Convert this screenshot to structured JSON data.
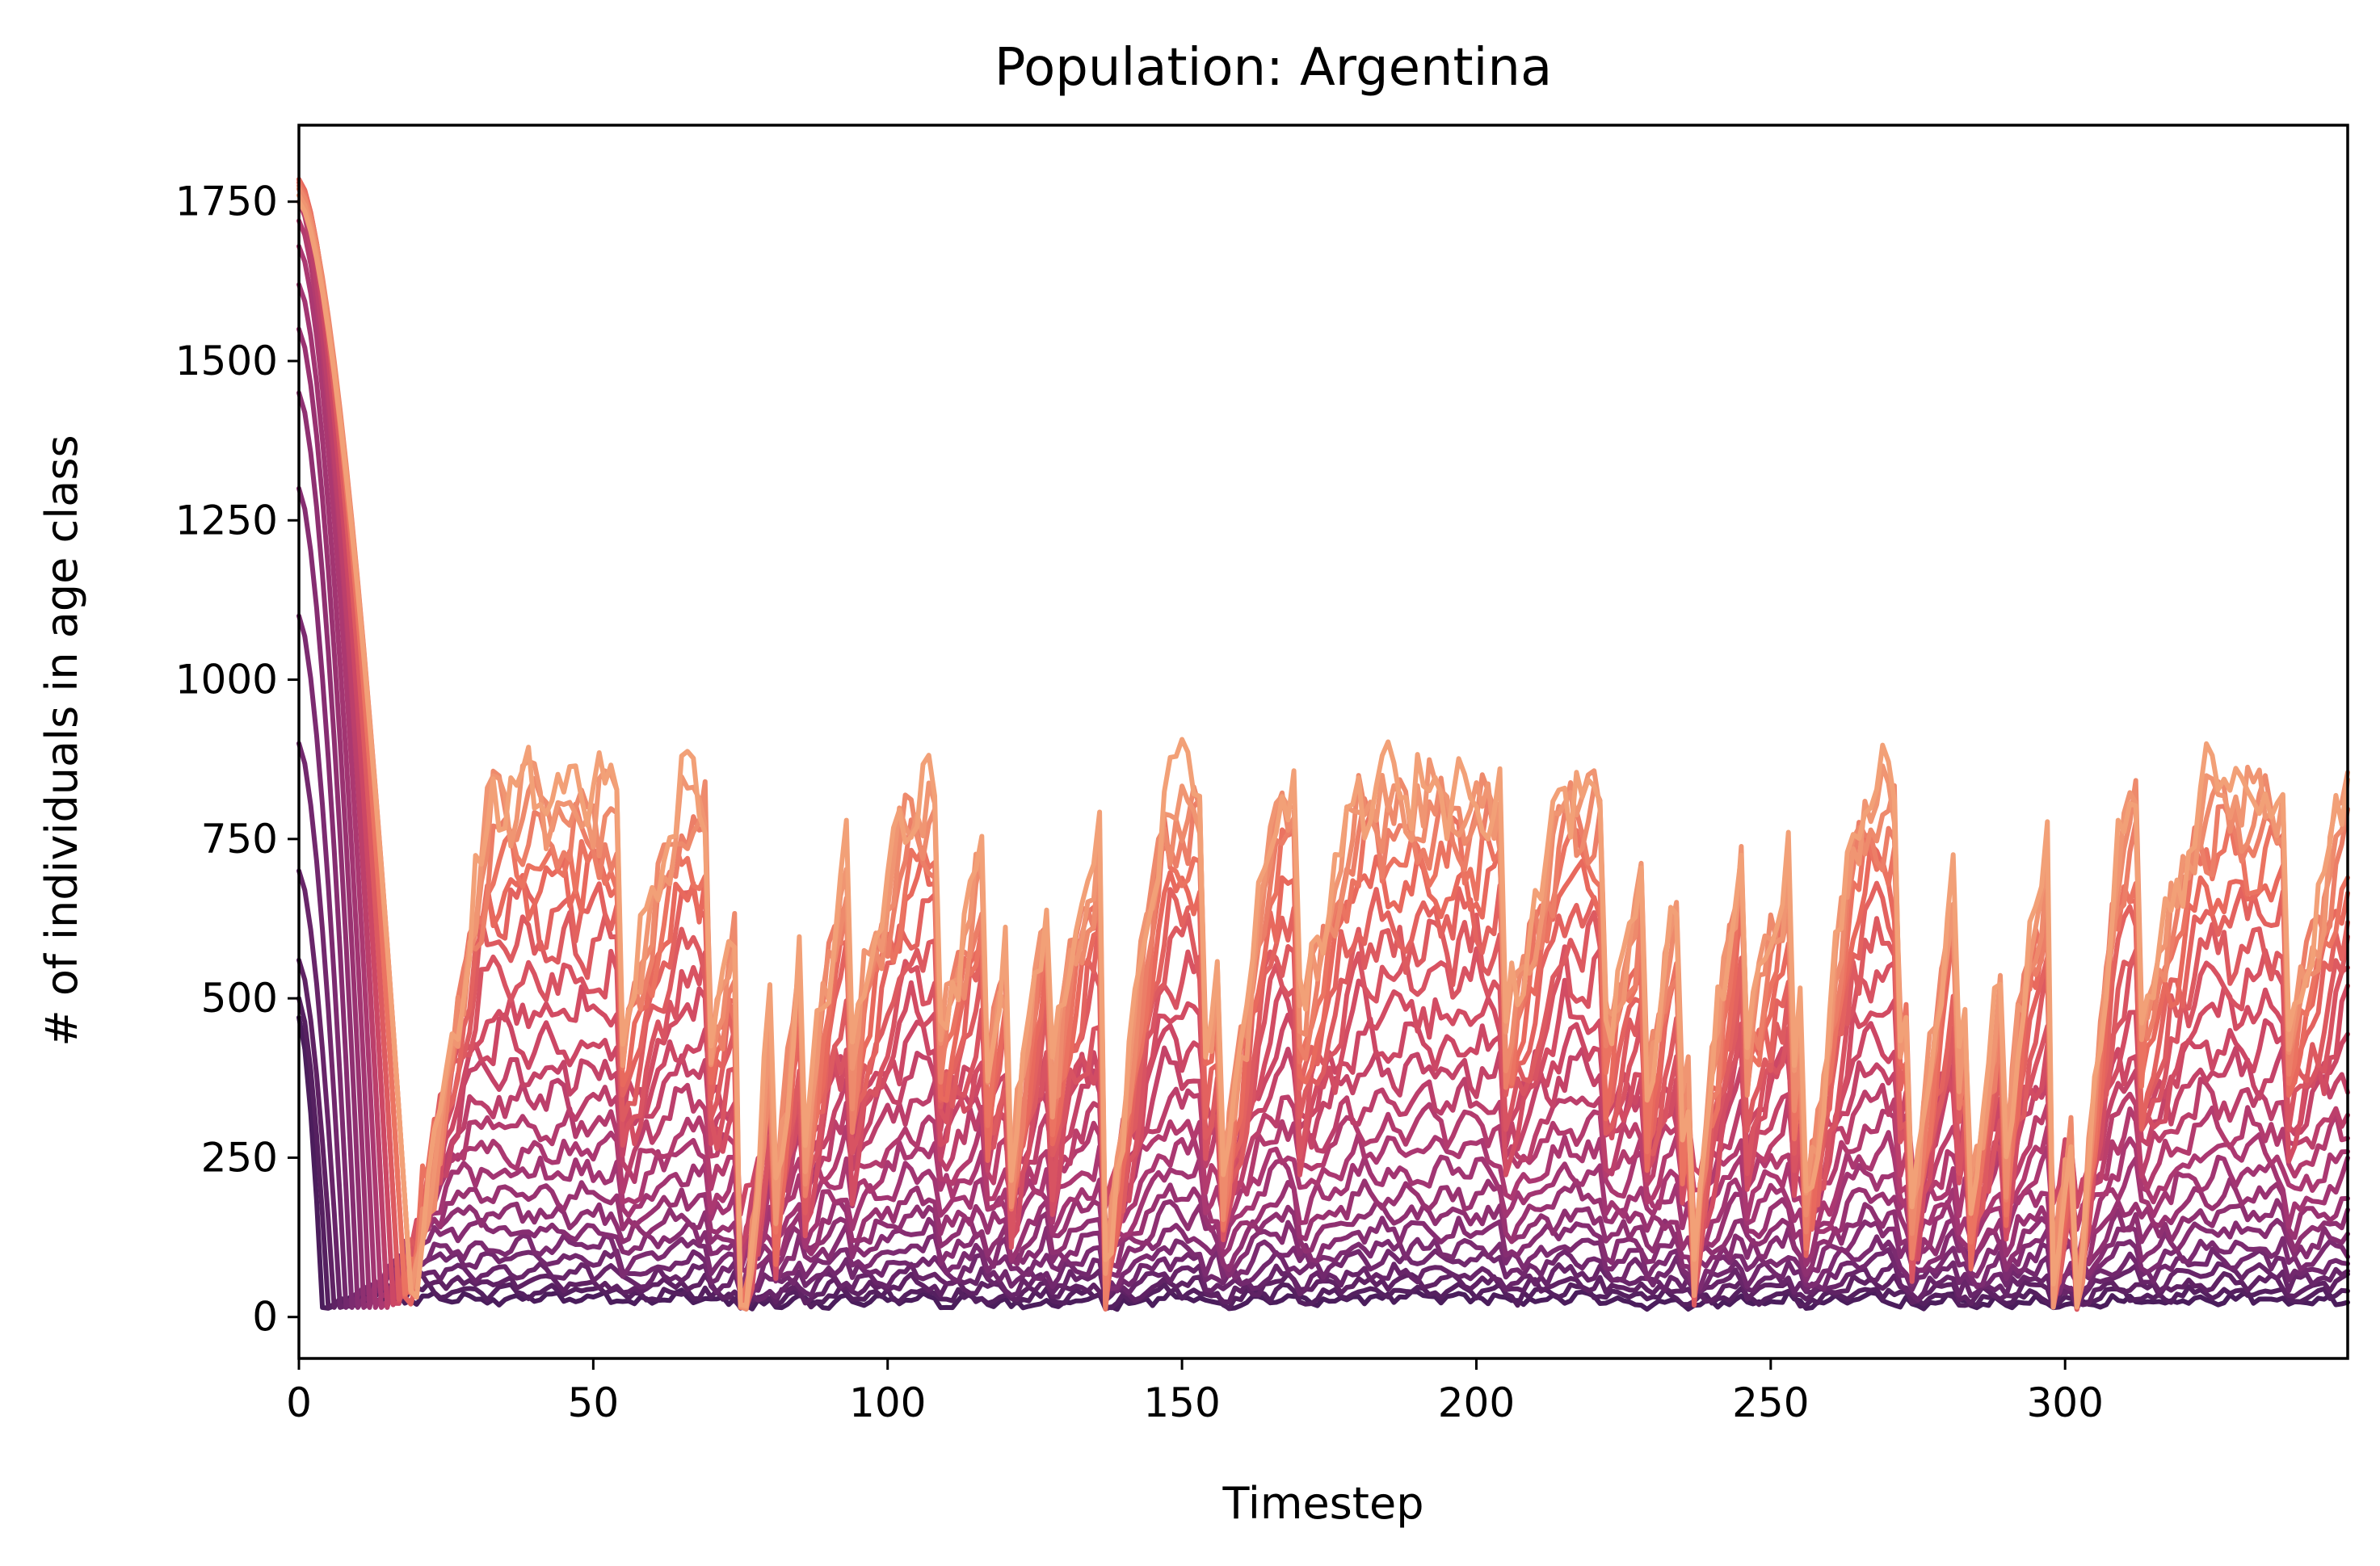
{
  "chart_data": {
    "type": "line",
    "title": "Population: Argentina",
    "xlabel": "Timestep",
    "ylabel": "# of individuals in age class",
    "xlim": [
      0,
      348
    ],
    "ylim": [
      -65,
      1870
    ],
    "xticks": [
      0,
      50,
      100,
      150,
      200,
      250,
      300
    ],
    "yticks": [
      0,
      250,
      500,
      750,
      1000,
      1250,
      1500,
      1750
    ],
    "grid": false,
    "legend": "none",
    "timesteps": 349,
    "series_count": 25,
    "colormap": [
      "#4b1d5c",
      "#7a2a70",
      "#a83672",
      "#cf4864",
      "#e96a5d",
      "#f2a077"
    ],
    "series_baseline_levels": [
      30,
      40,
      55,
      70,
      90,
      110,
      135,
      160,
      190,
      225,
      260,
      300,
      340,
      385,
      430,
      480,
      530,
      580,
      630,
      680,
      720,
      755,
      785,
      810,
      830
    ],
    "series_initial_values": [
      470,
      500,
      560,
      700,
      900,
      1100,
      1300,
      1450,
      1550,
      1620,
      1680,
      1720,
      1750,
      1770,
      1780,
      1785,
      1785,
      1785,
      1785,
      1785,
      1780,
      1775,
      1770,
      1760,
      1750
    ],
    "series_crash_timestep": [
      4,
      5,
      6,
      7,
      8,
      9,
      10,
      11,
      12,
      13,
      14,
      15,
      15,
      16,
      16,
      17,
      17,
      17,
      18,
      18,
      18,
      19,
      19,
      19,
      19
    ]
  }
}
